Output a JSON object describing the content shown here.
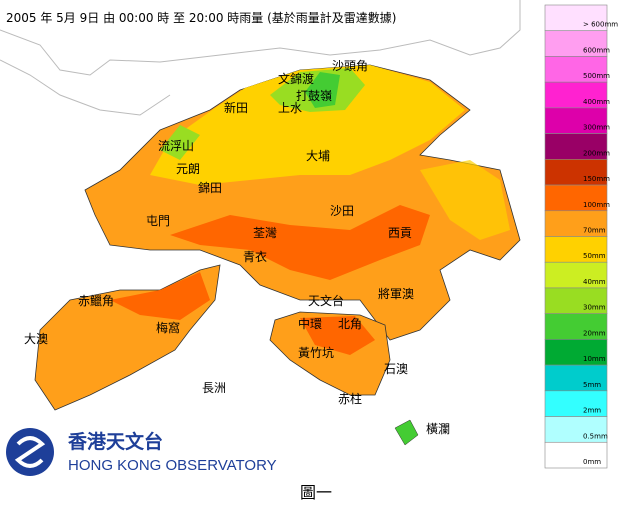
{
  "title": "2005 年 5月 9日 由 00:00 時 至 20:00 時雨量 (基於雨量計及雷達數據)",
  "places": [
    "沙頭角",
    "文錦渡",
    "打鼓嶺",
    "新田",
    "上水",
    "流浮山",
    "元朗",
    "大埔",
    "錦田",
    "沙田",
    "屯門",
    "荃灣",
    "西貢",
    "青衣",
    "將軍澳",
    "赤鱲角",
    "天文台",
    "中環",
    "北角",
    "梅窩",
    "大澳",
    "黃竹坑",
    "石澳",
    "長洲",
    "赤柱",
    "橫瀾"
  ],
  "legend": [
    {
      "label": "> 600mm",
      "color": "#ffe0ff"
    },
    {
      "label": "600mm",
      "color": "#ff9ef0"
    },
    {
      "label": "500mm",
      "color": "#ff66e6"
    },
    {
      "label": "400mm",
      "color": "#ff22d0"
    },
    {
      "label": "300mm",
      "color": "#dd00aa"
    },
    {
      "label": "200mm",
      "color": "#990066"
    },
    {
      "label": "150mm",
      "color": "#cc3300"
    },
    {
      "label": "100mm",
      "color": "#ff6600"
    },
    {
      "label": "70mm",
      "color": "#ff9f1a"
    },
    {
      "label": "50mm",
      "color": "#ffd100"
    },
    {
      "label": "40mm",
      "color": "#ccee22"
    },
    {
      "label": "30mm",
      "color": "#99dd22"
    },
    {
      "label": "20mm",
      "color": "#44cc33"
    },
    {
      "label": "10mm",
      "color": "#00aa33"
    },
    {
      "label": "5mm",
      "color": "#00cccc"
    },
    {
      "label": "2mm",
      "color": "#33ffff"
    },
    {
      "label": "0.5mm",
      "color": "#b0ffff"
    },
    {
      "label": "0mm",
      "color": "#ffffff"
    }
  ],
  "logo": {
    "chinese": "香港天文台",
    "english": "HONG KONG OBSERVATORY"
  },
  "caption": "圖一"
}
